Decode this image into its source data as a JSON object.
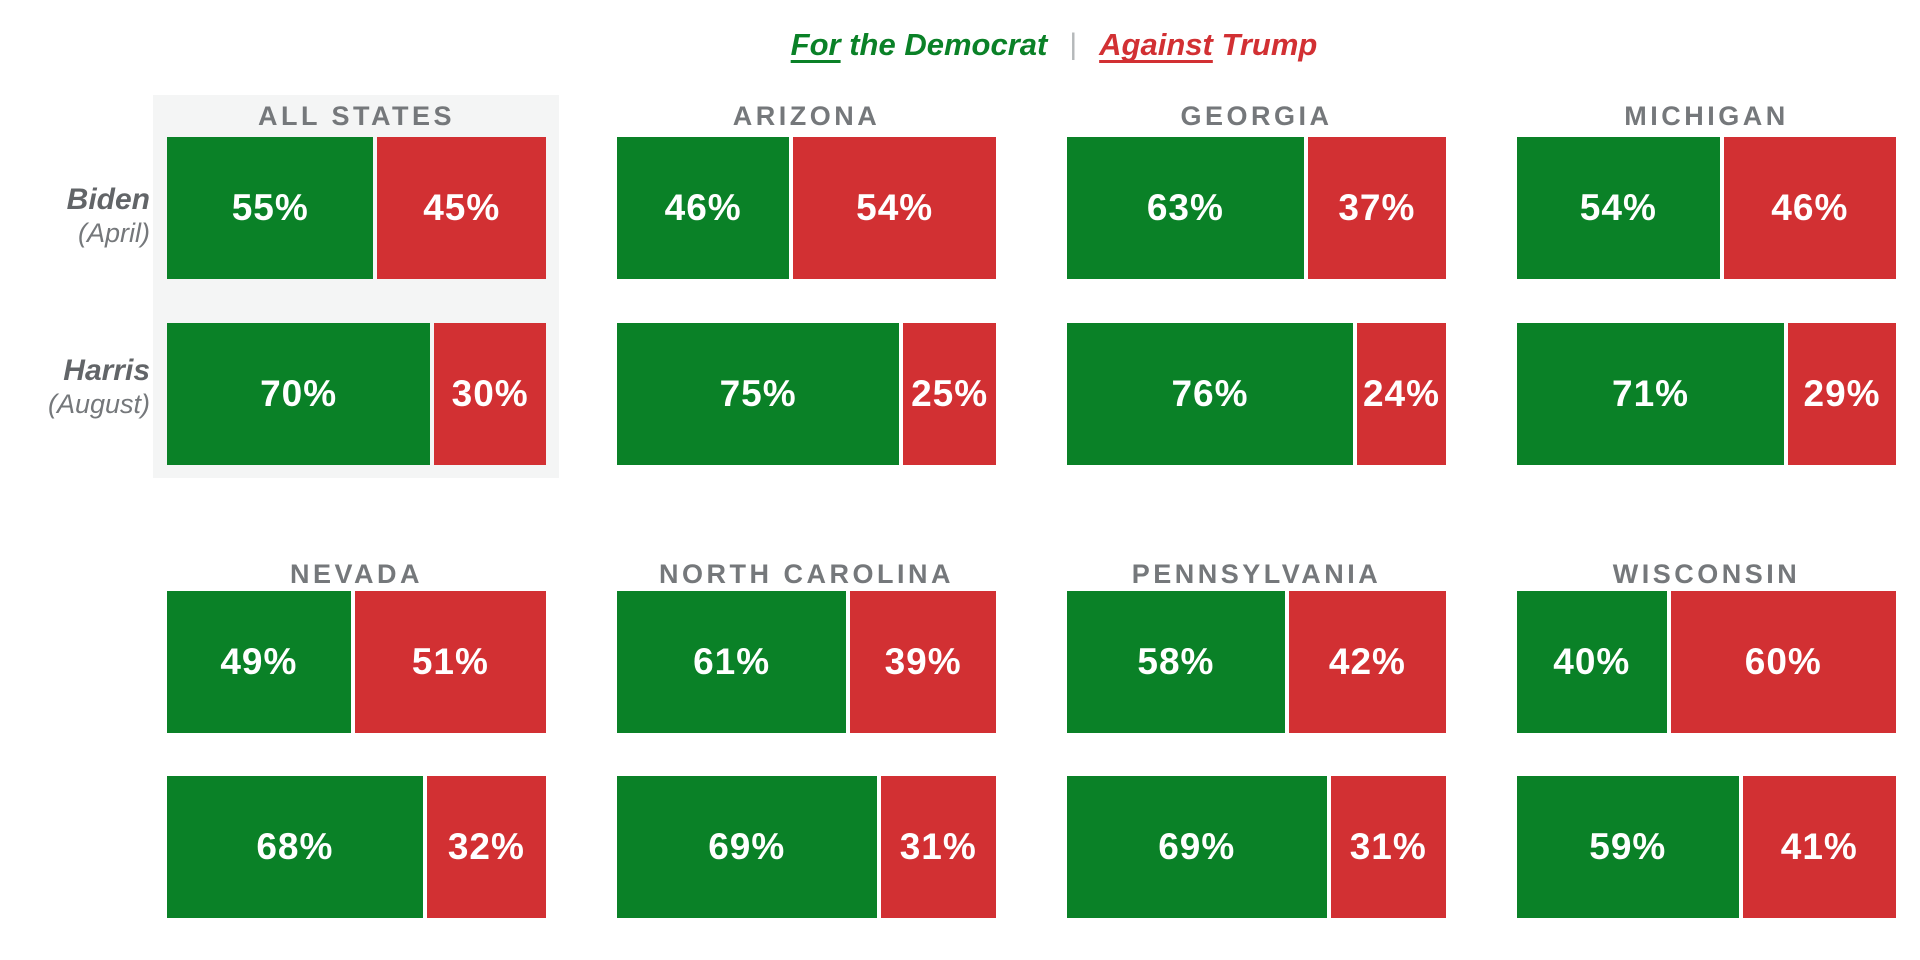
{
  "legend": {
    "for_word": "For",
    "for_rest": " the Democrat",
    "separator": "|",
    "against_word": "Against",
    "against_rest": " Trump"
  },
  "row_labels": [
    {
      "name": "Biden",
      "period": "(April)"
    },
    {
      "name": "Harris",
      "period": "(August)"
    }
  ],
  "panels": [
    {
      "state": "ALL STATES",
      "highlighted": true,
      "values": [
        {
          "for": "55%",
          "against": "45%"
        },
        {
          "for": "70%",
          "against": "30%"
        }
      ]
    },
    {
      "state": "ARIZONA",
      "highlighted": false,
      "values": [
        {
          "for": "46%",
          "against": "54%"
        },
        {
          "for": "75%",
          "against": "25%"
        }
      ]
    },
    {
      "state": "GEORGIA",
      "highlighted": false,
      "values": [
        {
          "for": "63%",
          "against": "37%"
        },
        {
          "for": "76%",
          "against": "24%"
        }
      ]
    },
    {
      "state": "MICHIGAN",
      "highlighted": false,
      "values": [
        {
          "for": "54%",
          "against": "46%"
        },
        {
          "for": "71%",
          "against": "29%"
        }
      ]
    },
    {
      "state": "NEVADA",
      "highlighted": false,
      "values": [
        {
          "for": "49%",
          "against": "51%"
        },
        {
          "for": "68%",
          "against": "32%"
        }
      ]
    },
    {
      "state": "NORTH CAROLINA",
      "highlighted": false,
      "values": [
        {
          "for": "61%",
          "against": "39%"
        },
        {
          "for": "69%",
          "against": "31%"
        }
      ]
    },
    {
      "state": "PENNSYLVANIA",
      "highlighted": false,
      "values": [
        {
          "for": "58%",
          "against": "42%"
        },
        {
          "for": "69%",
          "against": "31%"
        }
      ]
    },
    {
      "state": "WISCONSIN",
      "highlighted": false,
      "values": [
        {
          "for": "40%",
          "against": "60%"
        },
        {
          "for": "59%",
          "against": "41%"
        }
      ]
    }
  ],
  "colors": {
    "for_green": "#0a8127",
    "against_red": "#d23033",
    "header_gray": "#75787b",
    "label_gray": "#626568",
    "highlight_bg": "#f4f5f5",
    "separator_gray": "#b5b8ba"
  },
  "chart_data": {
    "type": "bar",
    "subtype": "100pct-stacked-horizontal-small-multiples",
    "title": "For the Democrat | Against Trump",
    "legend_entries": [
      "For the Democrat",
      "Against Trump"
    ],
    "legend_position": "top-center",
    "row_series": [
      "Biden (April)",
      "Harris (August)"
    ],
    "categories": [
      "ALL STATES",
      "ARIZONA",
      "GEORGIA",
      "MICHIGAN",
      "NEVADA",
      "NORTH CAROLINA",
      "PENNSYLVANIA",
      "WISCONSIN"
    ],
    "series": [
      {
        "name": "Biden (April) - For the Democrat",
        "values": [
          55,
          46,
          63,
          54,
          49,
          61,
          58,
          40
        ]
      },
      {
        "name": "Biden (April) - Against Trump",
        "values": [
          45,
          54,
          37,
          46,
          51,
          39,
          42,
          60
        ]
      },
      {
        "name": "Harris (August) - For the Democrat",
        "values": [
          70,
          75,
          76,
          71,
          68,
          69,
          69,
          59
        ]
      },
      {
        "name": "Harris (August) - Against Trump",
        "values": [
          30,
          25,
          24,
          29,
          32,
          31,
          31,
          41
        ]
      }
    ],
    "unit": "%",
    "xlim": [
      0,
      100
    ],
    "grid": false,
    "data_labels": true,
    "highlighted_category": "ALL STATES",
    "colors": {
      "for_the_democrat": "#0a8127",
      "against_trump": "#d23033"
    }
  }
}
